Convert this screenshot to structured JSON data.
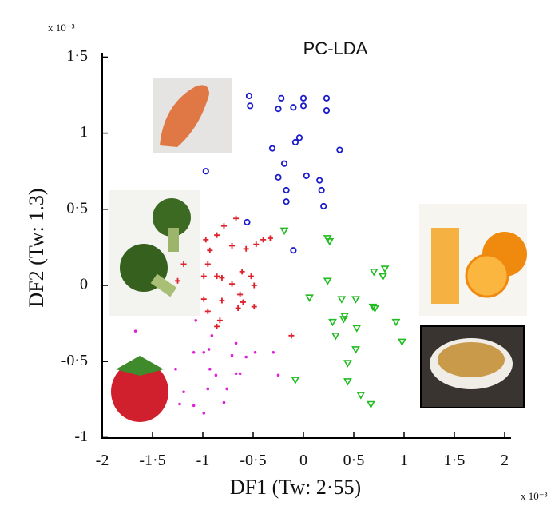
{
  "chart_data": {
    "type": "scatter",
    "title": "PC-LDA",
    "x_label": "DF1 (Tw: 2·55)",
    "y_label": "DF2 (Tw: 1.3)",
    "x_exponent": "x 10⁻³",
    "y_exponent": "x 10⁻³",
    "xlim": [
      -2,
      2
    ],
    "ylim": [
      -1,
      1.5
    ],
    "xticks": [
      -2,
      {
        "value": -1.5,
        "label": "-1·5"
      },
      -1,
      {
        "value": -0.5,
        "label": "-0·5"
      },
      0,
      {
        "value": 0.5,
        "label": "0·5"
      },
      1,
      {
        "value": 1.5,
        "label": "1·5"
      },
      2
    ],
    "yticks": [
      -1,
      {
        "value": -0.5,
        "label": "-0·5"
      },
      0,
      {
        "value": 0.5,
        "label": "0·5"
      },
      1,
      {
        "value": 1.5,
        "label": "1·5"
      }
    ],
    "series": [
      {
        "color": "#1a1acc",
        "marker": "circle",
        "x": [
          -0.54,
          -0.53,
          -0.22,
          -0.25,
          -0.1,
          0,
          0,
          0.23,
          0.23,
          -0.31,
          -0.08,
          -0.04,
          -0.19,
          0.36,
          -0.97,
          -0.25,
          0.03,
          0.16,
          0.18,
          -0.17,
          -0.17,
          0.2,
          -0.56,
          -0.1
        ],
        "values": [
          1.245,
          1.18,
          1.23,
          1.16,
          1.17,
          1.23,
          1.18,
          1.23,
          1.15,
          0.9,
          0.94,
          0.97,
          0.8,
          0.89,
          0.75,
          0.71,
          0.72,
          0.69,
          0.625,
          0.625,
          0.55,
          0.52,
          0.415,
          0.23
        ]
      },
      {
        "color": "#e0202a",
        "marker": "plus",
        "x": [
          -0.67,
          -0.79,
          -0.86,
          -0.97,
          -0.71,
          -0.93,
          -0.47,
          -0.4,
          -0.33,
          -0.57,
          -1.19,
          -1.25,
          -0.95,
          -0.99,
          -0.86,
          -0.81,
          -0.71,
          -0.61,
          -0.52,
          -0.49,
          -0.63,
          -0.6,
          -0.65,
          -0.49,
          -0.81,
          -0.99,
          -0.83,
          -0.86,
          -0.95,
          -0.12
        ],
        "values": [
          0.44,
          0.39,
          0.33,
          0.3,
          0.26,
          0.23,
          0.27,
          0.3,
          0.31,
          0.24,
          0.14,
          0.03,
          0.14,
          0.06,
          0.06,
          0.05,
          0.01,
          0.09,
          0.06,
          0.0,
          -0.06,
          -0.11,
          -0.15,
          -0.14,
          -0.1,
          -0.09,
          -0.23,
          -0.27,
          -0.17,
          -0.33
        ]
      },
      {
        "color": "#e020d8",
        "marker": "dot",
        "x": [
          -1.67,
          -1.07,
          -0.91,
          -0.67,
          -0.48,
          -1.09,
          -0.99,
          -0.94,
          -0.71,
          -0.57,
          -0.3,
          -1.27,
          -0.93,
          -0.87,
          -0.63,
          -0.25,
          -1.19,
          -0.95,
          -0.76,
          -1.23,
          -1.09,
          -0.99,
          -0.79,
          -0.67
        ],
        "values": [
          -0.3,
          -0.23,
          -0.33,
          -0.38,
          -0.44,
          -0.44,
          -0.44,
          -0.42,
          -0.46,
          -0.47,
          -0.44,
          -0.55,
          -0.55,
          -0.59,
          -0.58,
          -0.59,
          -0.7,
          -0.68,
          -0.68,
          -0.78,
          -0.79,
          -0.84,
          -0.77,
          -0.58
        ]
      },
      {
        "color": "#22bb22",
        "marker": "triangle",
        "x": [
          -0.19,
          0.24,
          0.26,
          0.24,
          0.7,
          0.81,
          0.79,
          0.06,
          0.38,
          0.52,
          0.41,
          0.4,
          0.29,
          0.69,
          0.71,
          0.92,
          0.98,
          0.32,
          0.53,
          0.52,
          0.44,
          0.44,
          0.57,
          0.67,
          -0.08
        ],
        "values": [
          0.36,
          0.31,
          0.29,
          0.03,
          0.09,
          0.11,
          0.06,
          -0.08,
          -0.09,
          -0.09,
          -0.2,
          -0.22,
          -0.24,
          -0.14,
          -0.15,
          -0.24,
          -0.37,
          -0.33,
          -0.28,
          -0.42,
          -0.51,
          -0.63,
          -0.72,
          -0.78,
          -0.62
        ]
      }
    ]
  }
}
